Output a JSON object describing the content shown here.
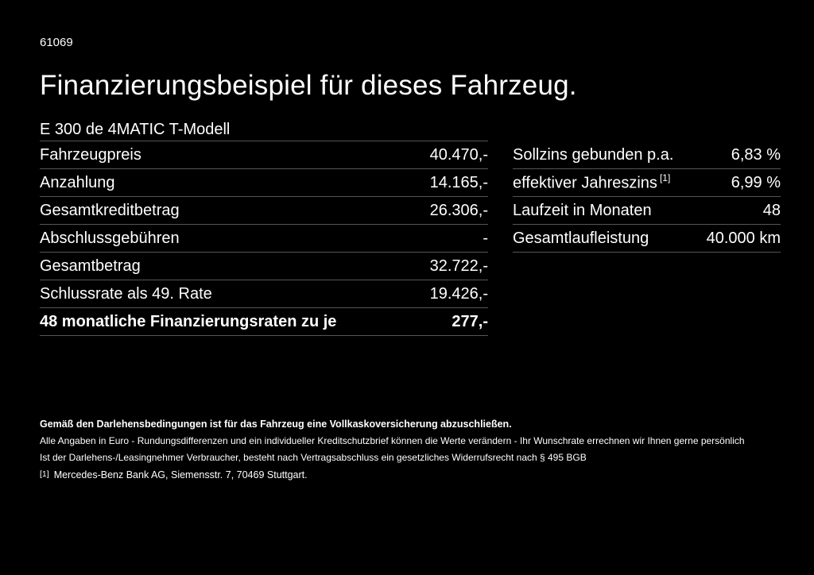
{
  "page": {
    "doc_number": "61069",
    "title": "Finanzierungsbeispiel für dieses Fahrzeug.",
    "model": "E 300 de 4MATIC T-Modell"
  },
  "financing_table": {
    "rows": [
      {
        "label": "Fahrzeugpreis",
        "value": "40.470,-"
      },
      {
        "label": "Anzahlung",
        "value": "14.165,-"
      },
      {
        "label": "Gesamtkreditbetrag",
        "value": "26.306,-"
      },
      {
        "label": "Abschlussgebühren",
        "value": "-"
      },
      {
        "label": "Gesamtbetrag",
        "value": "32.722,-"
      },
      {
        "label": "Schlussrate als 49. Rate",
        "value": "19.426,-"
      },
      {
        "label": "48 monatliche Finanzierungsraten zu je",
        "value": "277,-"
      }
    ]
  },
  "conditions_table": {
    "rows": [
      {
        "label": "Sollzins gebunden p.a.",
        "value": "6,83 %"
      },
      {
        "label": "effektiver Jahreszins",
        "sup": "[1]",
        "value": "6,99 %"
      },
      {
        "label": "Laufzeit in Monaten",
        "value": "48"
      },
      {
        "label": "Gesamtlaufleistung",
        "value": "40.000 km"
      }
    ]
  },
  "footer": {
    "insurance_note": "Gemäß den Darlehensbedingungen ist für das Fahrzeug eine Vollkaskoversicherung abzuschließen.",
    "line1": "Alle Angaben in Euro - Rundungsdifferenzen und ein individueller Kreditschutzbrief können die Werte verändern - Ihr Wunschrate errechnen wir Ihnen gerne persönlich",
    "line2": "Ist der Darlehens-/Leasingnehmer Verbraucher, besteht nach Vertragsabschluss ein gesetzliches Widerrufsrecht nach § 495 BGB",
    "footnote_marker": "[1]",
    "footnote_text": "Mercedes-Benz Bank AG, Siemensstr. 7, 70469 Stuttgart."
  },
  "colors": {
    "background": "#000000",
    "text": "#ffffff",
    "divider": "#555555"
  }
}
